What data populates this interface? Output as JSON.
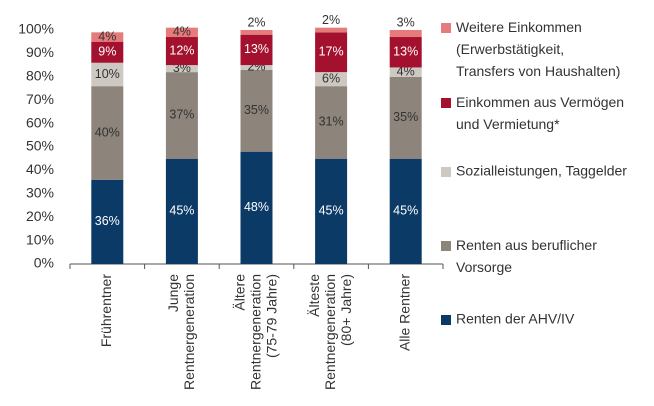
{
  "chart_data": {
    "type": "stacked_bar",
    "categories": [
      "Frührentner",
      "Junge\nRentnergeneration",
      "Ältere\nRentnergeneration\n(75-79 Jahre)",
      "Älteste\nRentnergeneration\n(80+ Jahre)",
      "Alle Rentner"
    ],
    "series": [
      {
        "name": "Renten der AHV/IV",
        "color": "#0b3a67",
        "values": [
          36,
          45,
          48,
          45,
          45
        ],
        "value_labels": [
          "36%",
          "45%",
          "48%",
          "45%",
          "45%"
        ]
      },
      {
        "name": "Renten aus beruflicher\nVorsorge",
        "color": "#8d847b",
        "values": [
          40,
          37,
          35,
          31,
          35
        ],
        "value_labels": [
          "40%",
          "37%",
          "35%",
          "31%",
          "35%"
        ]
      },
      {
        "name": "Sozialleistungen, Taggelder",
        "color": "#cdc8c2",
        "values": [
          10,
          3,
          2,
          6,
          4
        ],
        "value_labels": [
          "10%",
          "3%",
          "2%",
          "6%",
          "4%"
        ]
      },
      {
        "name": "Einkommen aus Vermögen\nund Vermietung*",
        "color": "#a3112f",
        "values": [
          9,
          12,
          13,
          17,
          13
        ],
        "value_labels": [
          "9%",
          "12%",
          "13%",
          "17%",
          "13%"
        ]
      },
      {
        "name": "Weitere Einkommen\n(Erwerbstätigkeit,\nTransfers von Haushalten)",
        "color": "#e57b7a",
        "values": [
          4,
          4,
          2,
          2,
          3
        ],
        "value_labels": [
          "4%",
          "4%",
          "2%",
          "2%",
          "3%"
        ]
      }
    ],
    "ylim": [
      0,
      100
    ],
    "yticks": [
      {
        "value": 0,
        "label": "0%"
      },
      {
        "value": 10,
        "label": "10%"
      },
      {
        "value": 20,
        "label": "20%"
      },
      {
        "value": 30,
        "label": "30%"
      },
      {
        "value": 40,
        "label": "40%"
      },
      {
        "value": 50,
        "label": "50%"
      },
      {
        "value": 60,
        "label": "60%"
      },
      {
        "value": 70,
        "label": "70%"
      },
      {
        "value": 80,
        "label": "80%"
      },
      {
        "value": 90,
        "label": "90%"
      },
      {
        "value": 100,
        "label": "100%"
      }
    ],
    "legend": "right"
  }
}
